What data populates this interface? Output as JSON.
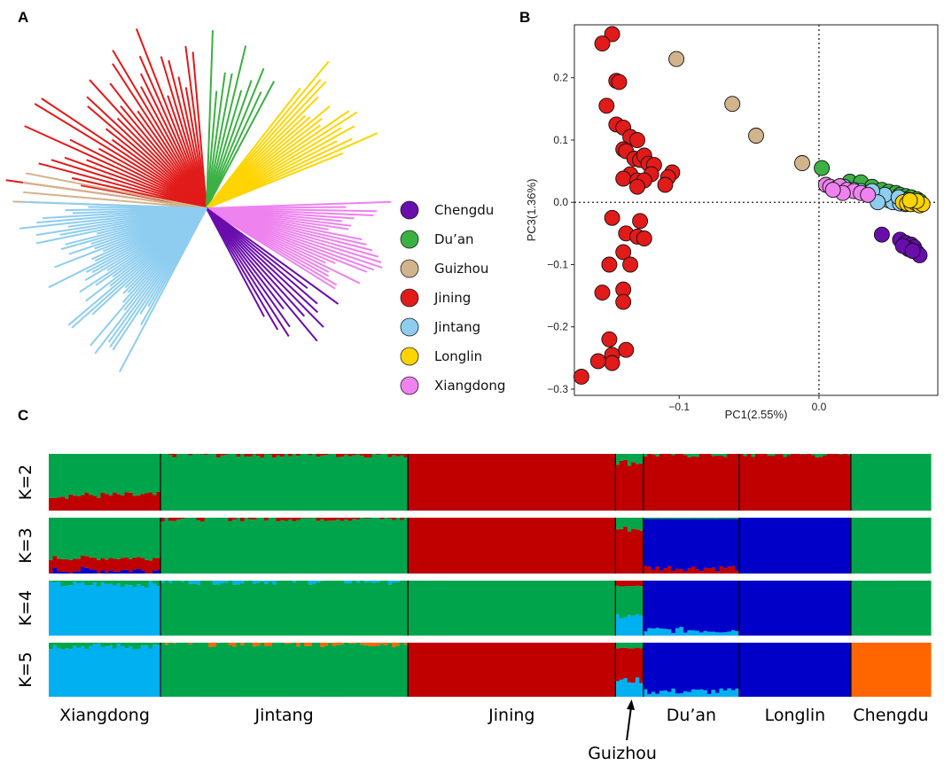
{
  "panel_labels": {
    "a": "A",
    "b": "B",
    "c": "C"
  },
  "colors": {
    "Chengdu": "#6a0dad",
    "Du'an": "#3cb043",
    "Guizhou": "#d2b48c",
    "Jining": "#e11a1a",
    "Jintang": "#8ecdf0",
    "Longlin": "#ffd400",
    "Xiangdong": "#ee82ee"
  },
  "legend": {
    "items": [
      {
        "label": "Chengdu",
        "color": "#6a0dad"
      },
      {
        "label": "Du’an",
        "color": "#3cb043"
      },
      {
        "label": "Guizhou",
        "color": "#d2b48c"
      },
      {
        "label": "Jining",
        "color": "#e11a1a"
      },
      {
        "label": "Jintang",
        "color": "#8ecdf0"
      },
      {
        "label": "Longlin",
        "color": "#ffd400"
      },
      {
        "label": "Xiangdong",
        "color": "#ee82ee"
      }
    ]
  },
  "tree_data": {
    "type": "unrooted-tree",
    "clades": [
      {
        "population": "Jining",
        "color": "#e11a1a",
        "angle_start": 95,
        "angle_end": 172,
        "branches": 34,
        "length_min": 0.55,
        "length_max": 1.0
      },
      {
        "population": "Du'an",
        "color": "#3cb043",
        "angle_start": 62,
        "angle_end": 88,
        "branches": 10,
        "length_min": 0.55,
        "length_max": 0.9
      },
      {
        "population": "Longlin",
        "color": "#ffd400",
        "angle_start": 22,
        "angle_end": 52,
        "branches": 18,
        "length_min": 0.65,
        "length_max": 0.95
      },
      {
        "population": "Guizhou",
        "color": "#d2b48c",
        "angle_start": 169,
        "angle_end": 178,
        "branches": 4,
        "length_min": 0.85,
        "length_max": 0.97
      },
      {
        "population": "Xiangdong",
        "color": "#ee82ee",
        "angle_start": -32,
        "angle_end": 2,
        "branches": 24,
        "length_min": 0.6,
        "length_max": 0.92
      },
      {
        "population": "Chengdu",
        "color": "#6a0dad",
        "angle_start": -62,
        "angle_end": -36,
        "branches": 12,
        "length_min": 0.6,
        "length_max": 0.85
      },
      {
        "population": "Jintang",
        "color": "#8ecdf0",
        "angle_start": -118,
        "angle_end": -182,
        "branches": 48,
        "length_min": 0.55,
        "length_max": 0.95
      }
    ]
  },
  "chart_data": [
    {
      "type": "scatter",
      "title": "",
      "xlabel": "PC1(2.55%)",
      "ylabel": "PC3(1.36%)",
      "xlim": [
        -0.175,
        0.085
      ],
      "ylim": [
        -0.31,
        0.285
      ],
      "xticks": [
        -0.1,
        0.0
      ],
      "xtick_labels": [
        "−0.1",
        "0.0"
      ],
      "yticks": [
        0.2,
        0.1,
        0.0,
        -0.1,
        -0.2,
        -0.3
      ],
      "ytick_labels": [
        "0.2",
        "0.1",
        "0.0",
        "−0.1",
        "−0.2",
        "−0.3"
      ],
      "reference_lines": {
        "x": 0.0,
        "y": 0.0
      },
      "series": [
        {
          "name": "Jining",
          "color": "#e11a1a",
          "points": [
            [
              -0.148,
              0.27
            ],
            [
              -0.155,
              0.255
            ],
            [
              -0.145,
              0.195
            ],
            [
              -0.143,
              0.193
            ],
            [
              -0.152,
              0.155
            ],
            [
              -0.145,
              0.125
            ],
            [
              -0.14,
              0.12
            ],
            [
              -0.135,
              0.105
            ],
            [
              -0.13,
              0.1
            ],
            [
              -0.14,
              0.085
            ],
            [
              -0.138,
              0.082
            ],
            [
              -0.132,
              0.07
            ],
            [
              -0.128,
              0.068
            ],
            [
              -0.125,
              0.075
            ],
            [
              -0.122,
              0.062
            ],
            [
              -0.118,
              0.06
            ],
            [
              -0.135,
              0.045
            ],
            [
              -0.12,
              0.045
            ],
            [
              -0.105,
              0.048
            ],
            [
              -0.108,
              0.04
            ],
            [
              -0.14,
              0.038
            ],
            [
              -0.13,
              0.035
            ],
            [
              -0.125,
              0.035
            ],
            [
              -0.11,
              0.028
            ],
            [
              -0.13,
              0.025
            ],
            [
              -0.148,
              -0.025
            ],
            [
              -0.128,
              -0.03
            ],
            [
              -0.138,
              -0.05
            ],
            [
              -0.13,
              -0.055
            ],
            [
              -0.125,
              -0.058
            ],
            [
              -0.14,
              -0.08
            ],
            [
              -0.135,
              -0.1
            ],
            [
              -0.15,
              -0.1
            ],
            [
              -0.155,
              -0.145
            ],
            [
              -0.14,
              -0.14
            ],
            [
              -0.14,
              -0.16
            ],
            [
              -0.15,
              -0.22
            ],
            [
              -0.138,
              -0.237
            ],
            [
              -0.148,
              -0.245
            ],
            [
              -0.148,
              -0.258
            ],
            [
              -0.158,
              -0.255
            ],
            [
              -0.17,
              -0.28
            ]
          ]
        },
        {
          "name": "Guizhou",
          "color": "#d2b48c",
          "points": [
            [
              -0.102,
              0.23
            ],
            [
              -0.062,
              0.158
            ],
            [
              -0.045,
              0.107
            ],
            [
              -0.012,
              0.063
            ]
          ]
        },
        {
          "name": "Du'an",
          "color": "#3cb043",
          "points": [
            [
              0.002,
              0.055
            ],
            [
              0.022,
              0.033
            ],
            [
              0.03,
              0.032
            ],
            [
              0.038,
              0.025
            ],
            [
              0.045,
              0.02
            ],
            [
              0.05,
              0.017
            ],
            [
              0.055,
              0.015
            ],
            [
              0.058,
              0.012
            ],
            [
              0.062,
              0.01
            ],
            [
              0.066,
              0.008
            ],
            [
              0.07,
              0.005
            ],
            [
              0.072,
              0.002
            ],
            [
              0.06,
              0.005
            ],
            [
              0.068,
              0.0
            ]
          ]
        },
        {
          "name": "Jintang",
          "color": "#8ecdf0",
          "points": [
            [
              0.018,
              0.025
            ],
            [
              0.025,
              0.02
            ],
            [
              0.03,
              0.018
            ],
            [
              0.035,
              0.015
            ],
            [
              0.04,
              0.01
            ],
            [
              0.045,
              0.007
            ],
            [
              0.05,
              0.003
            ],
            [
              0.053,
              0.0
            ],
            [
              0.058,
              -0.002
            ],
            [
              0.062,
              -0.003
            ],
            [
              0.047,
              0.012
            ],
            [
              0.038,
              0.018
            ],
            [
              0.057,
              0.008
            ],
            [
              0.064,
              0.004
            ],
            [
              0.042,
              0.0
            ]
          ]
        },
        {
          "name": "Longlin",
          "color": "#ffd400",
          "points": [
            [
              0.06,
              0.0
            ],
            [
              0.063,
              -0.002
            ],
            [
              0.066,
              -0.003
            ],
            [
              0.069,
              -0.001
            ],
            [
              0.072,
              -0.005
            ],
            [
              0.074,
              -0.003
            ],
            [
              0.07,
              0.002
            ],
            [
              0.065,
              0.003
            ]
          ]
        },
        {
          "name": "Xiangdong",
          "color": "#ee82ee",
          "points": [
            [
              0.005,
              0.028
            ],
            [
              0.008,
              0.025
            ],
            [
              0.012,
              0.022
            ],
            [
              0.015,
              0.026
            ],
            [
              0.02,
              0.02
            ],
            [
              0.025,
              0.018
            ],
            [
              0.03,
              0.015
            ],
            [
              0.035,
              0.012
            ],
            [
              0.017,
              0.015
            ],
            [
              0.01,
              0.02
            ]
          ]
        },
        {
          "name": "Chengdu",
          "color": "#6a0dad",
          "points": [
            [
              0.045,
              -0.052
            ],
            [
              0.058,
              -0.06
            ],
            [
              0.062,
              -0.065
            ],
            [
              0.066,
              -0.068
            ],
            [
              0.068,
              -0.072
            ],
            [
              0.064,
              -0.075
            ],
            [
              0.07,
              -0.08
            ],
            [
              0.072,
              -0.085
            ],
            [
              0.06,
              -0.07
            ],
            [
              0.067,
              -0.078
            ]
          ]
        }
      ]
    },
    {
      "type": "bar",
      "subtype": "admixture-stacked",
      "k_labels": [
        "K=2",
        "K=3",
        "K=4",
        "K=5"
      ],
      "cluster_colors": {
        "green": "#00a54b",
        "red": "#c00000",
        "blue": "#0000c8",
        "lightblue": "#00b0f0",
        "orange": "#ff6600"
      },
      "populations": [
        {
          "name": "Xiangdong",
          "label": "Xiangdong",
          "n": 28
        },
        {
          "name": "Jintang",
          "label": "Jintang",
          "n": 62
        },
        {
          "name": "Jining",
          "label": "Jining",
          "n": 52
        },
        {
          "name": "Guizhou",
          "label": "",
          "n": 7
        },
        {
          "name": "Du'an",
          "label": "Du’an",
          "n": 24
        },
        {
          "name": "Longlin",
          "label": "Longlin",
          "n": 28
        },
        {
          "name": "Chengdu",
          "label": "Chengdu",
          "n": 20
        }
      ],
      "annotation": {
        "label": "Guizhou"
      },
      "profiles": {
        "K=2": {
          "Xiangdong": {
            "red": 0.27,
            "green": 0.73
          },
          "Jintang": {
            "green": 0.99,
            "red": 0.01
          },
          "Jining": {
            "red": 1.0
          },
          "Guizhou": {
            "red": 0.85,
            "green": 0.15
          },
          "Du'an": {
            "red": 0.99,
            "green": 0.01
          },
          "Longlin": {
            "red": 0.99,
            "green": 0.01
          },
          "Chengdu": {
            "green": 1.0
          }
        },
        "K=3": {
          "Xiangdong": {
            "blue": 0.06,
            "red": 0.22,
            "green": 0.72
          },
          "Jintang": {
            "green": 0.99,
            "red": 0.01
          },
          "Jining": {
            "red": 1.0
          },
          "Guizhou": {
            "red": 0.8,
            "green": 0.2
          },
          "Du'an": {
            "red": 0.1,
            "blue": 0.88,
            "green": 0.02
          },
          "Longlin": {
            "blue": 1.0
          },
          "Chengdu": {
            "green": 1.0
          }
        },
        "K=4": {
          "Xiangdong": {
            "lightblue": 0.93,
            "green": 0.07
          },
          "Jintang": {
            "green": 0.99,
            "lightblue": 0.01
          },
          "Jining": {
            "green": 1.0
          },
          "Guizhou": {
            "lightblue": 0.35,
            "green": 0.55,
            "red": 0.1
          },
          "Du'an": {
            "lightblue": 0.1,
            "blue": 0.9
          },
          "Longlin": {
            "blue": 1.0
          },
          "Chengdu": {
            "green": 1.0
          }
        },
        "K=5": {
          "Xiangdong": {
            "lightblue": 0.93,
            "green": 0.07
          },
          "Jintang": {
            "green": 0.98,
            "orange": 0.02
          },
          "Jining": {
            "red": 1.0
          },
          "Guizhou": {
            "lightblue": 0.3,
            "red": 0.6,
            "green": 0.1
          },
          "Du'an": {
            "lightblue": 0.1,
            "blue": 0.9
          },
          "Longlin": {
            "blue": 1.0
          },
          "Chengdu": {
            "orange": 1.0
          }
        }
      }
    }
  ]
}
